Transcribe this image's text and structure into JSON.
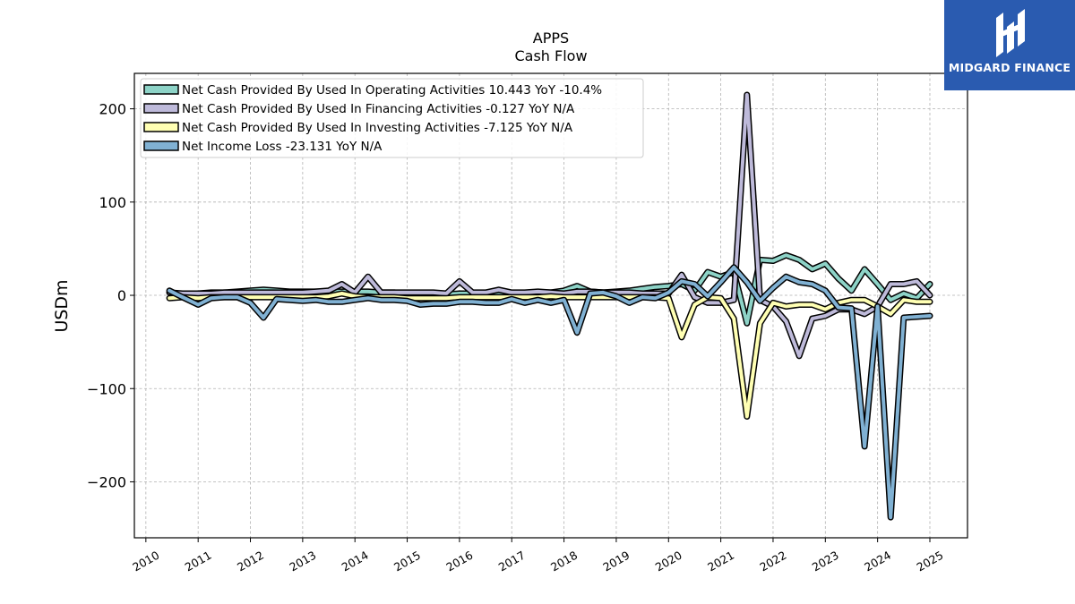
{
  "brand": {
    "name": "MIDGARD FINANCE",
    "logo_icon": "midgard-logo-icon",
    "color": "#2a5bb0"
  },
  "chart_data": {
    "type": "line",
    "title": "APPS",
    "subtitle": "Cash Flow",
    "xlabel": "",
    "ylabel": "USDm",
    "xlim": [
      2009.78,
      2025.72
    ],
    "ylim": [
      -260,
      238
    ],
    "yticks": [
      200,
      100,
      0,
      -100,
      -200
    ],
    "ytick_labels": [
      "200",
      "100",
      "0",
      "−100",
      "−200"
    ],
    "xticks": [
      2010,
      2011,
      2012,
      2013,
      2014,
      2015,
      2016,
      2017,
      2018,
      2019,
      2020,
      2021,
      2022,
      2023,
      2024,
      2025
    ],
    "xtick_labels": [
      "2010",
      "2011",
      "2012",
      "2013",
      "2014",
      "2015",
      "2016",
      "2017",
      "2018",
      "2019",
      "2020",
      "2021",
      "2022",
      "2023",
      "2024",
      "2025"
    ],
    "grid": true,
    "legend_position": "top-left",
    "series": [
      {
        "name": "Net Cash Provided By Used In Operating Activities",
        "legend": "Net Cash Provided By Used In Operating Activities  10.443 YoY -10.4%",
        "color": "#8dd3c7",
        "points": [
          [
            2010.45,
            3
          ],
          [
            2010.7,
            1
          ],
          [
            2011.0,
            2
          ],
          [
            2011.25,
            3
          ],
          [
            2011.5,
            3
          ],
          [
            2011.75,
            4
          ],
          [
            2012.0,
            5
          ],
          [
            2012.25,
            6
          ],
          [
            2012.5,
            5
          ],
          [
            2012.75,
            4
          ],
          [
            2013.0,
            4
          ],
          [
            2013.25,
            4
          ],
          [
            2013.5,
            4
          ],
          [
            2013.75,
            4
          ],
          [
            2014.0,
            4
          ],
          [
            2014.25,
            4
          ],
          [
            2014.5,
            3
          ],
          [
            2014.75,
            3
          ],
          [
            2015.0,
            2
          ],
          [
            2015.25,
            1
          ],
          [
            2015.5,
            1
          ],
          [
            2015.75,
            1
          ],
          [
            2016.0,
            2
          ],
          [
            2016.25,
            2
          ],
          [
            2016.5,
            2
          ],
          [
            2016.75,
            2
          ],
          [
            2017.0,
            2
          ],
          [
            2017.25,
            2
          ],
          [
            2017.5,
            3
          ],
          [
            2017.75,
            3
          ],
          [
            2018.0,
            5
          ],
          [
            2018.25,
            10
          ],
          [
            2018.5,
            4
          ],
          [
            2018.75,
            3
          ],
          [
            2019.0,
            4
          ],
          [
            2019.25,
            5
          ],
          [
            2019.5,
            7
          ],
          [
            2019.75,
            9
          ],
          [
            2020.0,
            10
          ],
          [
            2020.25,
            12
          ],
          [
            2020.5,
            5
          ],
          [
            2020.75,
            25
          ],
          [
            2021.0,
            20
          ],
          [
            2021.25,
            25
          ],
          [
            2021.5,
            -30
          ],
          [
            2021.75,
            38
          ],
          [
            2022.0,
            37
          ],
          [
            2022.25,
            43
          ],
          [
            2022.5,
            38
          ],
          [
            2022.75,
            28
          ],
          [
            2023.0,
            34
          ],
          [
            2023.25,
            18
          ],
          [
            2023.5,
            5
          ],
          [
            2023.75,
            28
          ],
          [
            2024.0,
            12
          ],
          [
            2024.25,
            -5
          ],
          [
            2024.5,
            2
          ],
          [
            2024.75,
            -3
          ],
          [
            2025.0,
            12
          ]
        ]
      },
      {
        "name": "Net Cash Provided By Used In Financing Activities",
        "legend": "Net Cash Provided By Used In Financing Activities  -0.127 YoY N/A",
        "color": "#bebada",
        "points": [
          [
            2010.45,
            3
          ],
          [
            2010.7,
            2
          ],
          [
            2011.0,
            2
          ],
          [
            2011.25,
            2
          ],
          [
            2011.5,
            3
          ],
          [
            2011.75,
            3
          ],
          [
            2012.0,
            3
          ],
          [
            2012.25,
            3
          ],
          [
            2012.5,
            3
          ],
          [
            2012.75,
            3
          ],
          [
            2013.0,
            3
          ],
          [
            2013.25,
            4
          ],
          [
            2013.5,
            5
          ],
          [
            2013.75,
            12
          ],
          [
            2014.0,
            3
          ],
          [
            2014.25,
            20
          ],
          [
            2014.5,
            3
          ],
          [
            2014.75,
            3
          ],
          [
            2015.0,
            3
          ],
          [
            2015.25,
            3
          ],
          [
            2015.5,
            3
          ],
          [
            2015.75,
            2
          ],
          [
            2016.0,
            15
          ],
          [
            2016.25,
            3
          ],
          [
            2016.5,
            3
          ],
          [
            2016.75,
            6
          ],
          [
            2017.0,
            3
          ],
          [
            2017.25,
            3
          ],
          [
            2017.5,
            4
          ],
          [
            2017.75,
            3
          ],
          [
            2018.0,
            2
          ],
          [
            2018.25,
            4
          ],
          [
            2018.5,
            4
          ],
          [
            2018.75,
            3
          ],
          [
            2019.0,
            3
          ],
          [
            2019.25,
            3
          ],
          [
            2019.5,
            2
          ],
          [
            2019.75,
            2
          ],
          [
            2020.0,
            2
          ],
          [
            2020.25,
            22
          ],
          [
            2020.5,
            -2
          ],
          [
            2020.75,
            -8
          ],
          [
            2021.0,
            -8
          ],
          [
            2021.25,
            -5
          ],
          [
            2021.5,
            215
          ],
          [
            2021.75,
            -5
          ],
          [
            2022.0,
            -12
          ],
          [
            2022.25,
            -28
          ],
          [
            2022.5,
            -65
          ],
          [
            2022.75,
            -25
          ],
          [
            2023.0,
            -22
          ],
          [
            2023.25,
            -15
          ],
          [
            2023.5,
            -15
          ],
          [
            2023.75,
            -20
          ],
          [
            2024.0,
            -12
          ],
          [
            2024.25,
            12
          ],
          [
            2024.5,
            12
          ],
          [
            2024.75,
            15
          ],
          [
            2025.0,
            0
          ]
        ]
      },
      {
        "name": "Net Cash Provided By Used In Investing Activities",
        "legend": "Net Cash Provided By Used In Investing Activities  -7.125 YoY N/A",
        "color": "#ffffb3",
        "points": [
          [
            2010.45,
            -3
          ],
          [
            2010.7,
            -2
          ],
          [
            2011.0,
            -3
          ],
          [
            2011.25,
            -2
          ],
          [
            2011.5,
            -2
          ],
          [
            2011.75,
            -2
          ],
          [
            2012.0,
            -2
          ],
          [
            2012.25,
            -2
          ],
          [
            2012.5,
            -2
          ],
          [
            2012.75,
            -2
          ],
          [
            2013.0,
            -2
          ],
          [
            2013.25,
            -2
          ],
          [
            2013.5,
            -1
          ],
          [
            2013.75,
            2
          ],
          [
            2014.0,
            -1
          ],
          [
            2014.25,
            -2
          ],
          [
            2014.5,
            -2
          ],
          [
            2014.75,
            -2
          ],
          [
            2015.0,
            -3
          ],
          [
            2015.25,
            -3
          ],
          [
            2015.5,
            -3
          ],
          [
            2015.75,
            -3
          ],
          [
            2016.0,
            -2
          ],
          [
            2016.25,
            -2
          ],
          [
            2016.5,
            -2
          ],
          [
            2016.75,
            -2
          ],
          [
            2017.0,
            -2
          ],
          [
            2017.25,
            -2
          ],
          [
            2017.5,
            -2
          ],
          [
            2017.75,
            -1
          ],
          [
            2018.0,
            -2
          ],
          [
            2018.25,
            -2
          ],
          [
            2018.5,
            -2
          ],
          [
            2018.75,
            -2
          ],
          [
            2019.0,
            -2
          ],
          [
            2019.25,
            -2
          ],
          [
            2019.5,
            -2
          ],
          [
            2019.75,
            -2
          ],
          [
            2020.0,
            -3
          ],
          [
            2020.25,
            -45
          ],
          [
            2020.5,
            -10
          ],
          [
            2020.75,
            -2
          ],
          [
            2021.0,
            -3
          ],
          [
            2021.25,
            -25
          ],
          [
            2021.5,
            -130
          ],
          [
            2021.75,
            -30
          ],
          [
            2022.0,
            -8
          ],
          [
            2022.25,
            -12
          ],
          [
            2022.5,
            -10
          ],
          [
            2022.75,
            -10
          ],
          [
            2023.0,
            -15
          ],
          [
            2023.25,
            -8
          ],
          [
            2023.5,
            -5
          ],
          [
            2023.75,
            -5
          ],
          [
            2024.0,
            -12
          ],
          [
            2024.25,
            -20
          ],
          [
            2024.5,
            -5
          ],
          [
            2024.75,
            -7
          ],
          [
            2025.0,
            -7
          ]
        ]
      },
      {
        "name": "Net Income Loss",
        "legend": "Net Income Loss  -23.131 YoY N/A",
        "color": "#80b1d3",
        "points": [
          [
            2010.45,
            5
          ],
          [
            2010.7,
            -2
          ],
          [
            2011.0,
            -10
          ],
          [
            2011.25,
            -3
          ],
          [
            2011.5,
            -2
          ],
          [
            2011.75,
            -2
          ],
          [
            2012.0,
            -8
          ],
          [
            2012.25,
            -24
          ],
          [
            2012.5,
            -4
          ],
          [
            2012.75,
            -5
          ],
          [
            2013.0,
            -6
          ],
          [
            2013.25,
            -5
          ],
          [
            2013.5,
            -7
          ],
          [
            2013.75,
            -7
          ],
          [
            2014.0,
            -5
          ],
          [
            2014.25,
            -3
          ],
          [
            2014.5,
            -5
          ],
          [
            2014.75,
            -5
          ],
          [
            2015.0,
            -6
          ],
          [
            2015.25,
            -10
          ],
          [
            2015.5,
            -9
          ],
          [
            2015.75,
            -9
          ],
          [
            2016.0,
            -7
          ],
          [
            2016.25,
            -7
          ],
          [
            2016.5,
            -8
          ],
          [
            2016.75,
            -8
          ],
          [
            2017.0,
            -4
          ],
          [
            2017.25,
            -8
          ],
          [
            2017.5,
            -5
          ],
          [
            2017.75,
            -8
          ],
          [
            2018.0,
            -5
          ],
          [
            2018.25,
            -40
          ],
          [
            2018.5,
            2
          ],
          [
            2018.75,
            3
          ],
          [
            2019.0,
            -1
          ],
          [
            2019.25,
            -8
          ],
          [
            2019.5,
            -2
          ],
          [
            2019.75,
            -3
          ],
          [
            2020.0,
            3
          ],
          [
            2020.25,
            15
          ],
          [
            2020.5,
            12
          ],
          [
            2020.75,
            -1
          ],
          [
            2021.0,
            14
          ],
          [
            2021.25,
            30
          ],
          [
            2021.5,
            14
          ],
          [
            2021.75,
            -6
          ],
          [
            2022.0,
            8
          ],
          [
            2022.25,
            20
          ],
          [
            2022.5,
            14
          ],
          [
            2022.75,
            12
          ],
          [
            2023.0,
            5
          ],
          [
            2023.25,
            -13
          ],
          [
            2023.5,
            -14
          ],
          [
            2023.75,
            -162
          ],
          [
            2024.0,
            -12
          ],
          [
            2024.25,
            -238
          ],
          [
            2024.5,
            -24
          ],
          [
            2024.75,
            -23
          ],
          [
            2025.0,
            -22
          ]
        ]
      }
    ]
  }
}
